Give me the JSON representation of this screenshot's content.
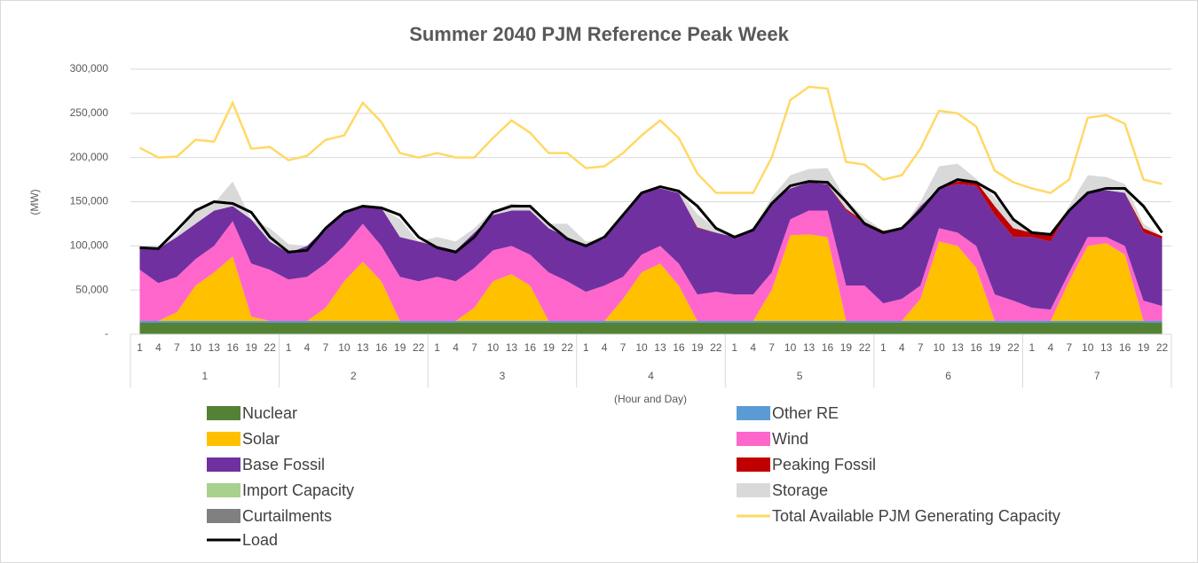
{
  "chart_data": {
    "type": "stacked-area",
    "title": "Summer 2040 PJM Reference Peak Week",
    "y_label": "(MW)",
    "x_label": "(Hour and Day)",
    "legend": "bottom",
    "grid": true,
    "categories": [
      "1",
      "4",
      "7",
      "10",
      "13",
      "16",
      "19",
      "22",
      "1",
      "4",
      "7",
      "10",
      "13",
      "16",
      "19",
      "22",
      "1",
      "4",
      "7",
      "10",
      "13",
      "16",
      "19",
      "22",
      "1",
      "4",
      "7",
      "10",
      "13",
      "16",
      "19",
      "22",
      "1",
      "4",
      "7",
      "10",
      "13",
      "16",
      "19",
      "22",
      "1",
      "4",
      "7",
      "10",
      "13",
      "16",
      "19",
      "22",
      "1",
      "4",
      "7",
      "10",
      "13",
      "16",
      "19",
      "22"
    ],
    "groups": [
      "1",
      "2",
      "3",
      "4",
      "5",
      "6",
      "7"
    ],
    "ylim": [
      0,
      300000
    ],
    "yticks": [
      {
        "value": 0,
        "label": "-"
      },
      {
        "value": 50000,
        "label": "50,000"
      },
      {
        "value": 100000,
        "label": "100,000"
      },
      {
        "value": 150000,
        "label": "150,000"
      },
      {
        "value": 200000,
        "label": "200,000"
      },
      {
        "value": 250000,
        "label": "250,000"
      },
      {
        "value": 300000,
        "label": "300,000"
      }
    ],
    "series": [
      {
        "name": "Nuclear",
        "color": "#548235",
        "kind": "area",
        "values": [
          13000,
          13000,
          13000,
          13000,
          13000,
          13000,
          13000,
          13000,
          13000,
          13000,
          13000,
          13000,
          13000,
          13000,
          13000,
          13000,
          13000,
          13000,
          13000,
          13000,
          13000,
          13000,
          13000,
          13000,
          13000,
          13000,
          13000,
          13000,
          13000,
          13000,
          13000,
          13000,
          13000,
          13000,
          13000,
          13000,
          13000,
          13000,
          13000,
          13000,
          13000,
          13000,
          13000,
          13000,
          13000,
          13000,
          13000,
          13000,
          13000,
          13000,
          13000,
          13000,
          13000,
          13000,
          13000,
          13000
        ]
      },
      {
        "name": "Other RE",
        "color": "#5b9bd5",
        "kind": "area",
        "values": [
          2000,
          2000,
          2000,
          2000,
          2000,
          2000,
          2000,
          2000,
          2000,
          2000,
          2000,
          2000,
          2000,
          2000,
          2000,
          2000,
          2000,
          2000,
          2000,
          2000,
          2000,
          2000,
          2000,
          2000,
          2000,
          2000,
          2000,
          2000,
          2000,
          2000,
          2000,
          2000,
          2000,
          2000,
          2000,
          2000,
          2000,
          2000,
          2000,
          2000,
          2000,
          2000,
          2000,
          2000,
          2000,
          2000,
          2000,
          2000,
          2000,
          2000,
          2000,
          2000,
          2000,
          2000,
          2000,
          2000
        ]
      },
      {
        "name": "Solar",
        "color": "#ffc000",
        "kind": "area",
        "values": [
          0,
          0,
          10000,
          40000,
          55000,
          73000,
          5000,
          0,
          0,
          0,
          15000,
          45000,
          67000,
          45000,
          0,
          0,
          0,
          0,
          15000,
          45000,
          53000,
          40000,
          0,
          0,
          0,
          0,
          25000,
          55000,
          65000,
          40000,
          0,
          0,
          0,
          0,
          35000,
          97000,
          98000,
          95000,
          0,
          0,
          0,
          0,
          25000,
          90000,
          85000,
          60000,
          0,
          0,
          0,
          0,
          45000,
          85000,
          88000,
          75000,
          0,
          0
        ]
      },
      {
        "name": "Wind",
        "color": "#ff66cc",
        "kind": "area",
        "values": [
          58000,
          43000,
          40000,
          30000,
          30000,
          40000,
          60000,
          58000,
          47000,
          50000,
          50000,
          40000,
          43000,
          40000,
          50000,
          45000,
          50000,
          45000,
          45000,
          35000,
          32000,
          35000,
          55000,
          45000,
          33000,
          40000,
          25000,
          20000,
          20000,
          25000,
          30000,
          33000,
          30000,
          30000,
          20000,
          18000,
          27000,
          30000,
          40000,
          40000,
          20000,
          25000,
          15000,
          15000,
          15000,
          25000,
          30000,
          23000,
          15000,
          13000,
          10000,
          10000,
          7000,
          10000,
          23000,
          17000
        ]
      },
      {
        "name": "Base Fossil",
        "color": "#7030a0",
        "kind": "area",
        "values": [
          24000,
          39000,
          45000,
          40000,
          40000,
          17000,
          50000,
          32000,
          30000,
          35000,
          40000,
          38000,
          20000,
          43000,
          45000,
          45000,
          35000,
          35000,
          40000,
          40000,
          40000,
          50000,
          50000,
          50000,
          52000,
          53000,
          70000,
          70000,
          65000,
          80000,
          75000,
          67000,
          65000,
          75000,
          80000,
          35000,
          32000,
          30000,
          85000,
          70000,
          80000,
          80000,
          90000,
          45000,
          55000,
          68000,
          90000,
          72000,
          80000,
          77000,
          70000,
          50000,
          53000,
          60000,
          77000,
          76000
        ]
      },
      {
        "name": "Peaking Fossil",
        "color": "#c00000",
        "kind": "area",
        "values": [
          0,
          0,
          0,
          0,
          0,
          0,
          0,
          0,
          0,
          0,
          0,
          0,
          0,
          0,
          0,
          0,
          0,
          0,
          0,
          0,
          0,
          0,
          0,
          0,
          0,
          0,
          0,
          0,
          0,
          0,
          1000,
          0,
          0,
          0,
          0,
          0,
          0,
          0,
          2000,
          2000,
          2000,
          0,
          0,
          0,
          3000,
          5000,
          10000,
          10000,
          5000,
          8000,
          0,
          0,
          0,
          0,
          5000,
          3000
        ]
      },
      {
        "name": "Import Capacity",
        "color": "#a9d18e",
        "kind": "area",
        "values": [
          0,
          0,
          0,
          0,
          0,
          0,
          0,
          0,
          0,
          0,
          0,
          0,
          0,
          0,
          0,
          0,
          0,
          0,
          0,
          0,
          0,
          0,
          0,
          0,
          0,
          0,
          0,
          0,
          0,
          0,
          0,
          0,
          0,
          0,
          0,
          0,
          0,
          0,
          0,
          0,
          0,
          0,
          0,
          0,
          0,
          0,
          0,
          0,
          0,
          0,
          0,
          0,
          0,
          0,
          0,
          0
        ]
      },
      {
        "name": "Storage",
        "color": "#d9d9d9",
        "kind": "area",
        "values": [
          0,
          0,
          3000,
          15000,
          8000,
          28000,
          0,
          15000,
          10000,
          0,
          0,
          0,
          0,
          0,
          20000,
          0,
          10000,
          10000,
          5000,
          5000,
          8000,
          5000,
          5000,
          15000,
          5000,
          0,
          0,
          0,
          2000,
          3000,
          15000,
          5000,
          0,
          0,
          5000,
          15000,
          15000,
          18000,
          10000,
          5000,
          0,
          0,
          5000,
          25000,
          20000,
          3000,
          10000,
          10000,
          0,
          0,
          5000,
          20000,
          15000,
          10000,
          5000,
          0
        ]
      },
      {
        "name": "Curtailments",
        "color": "#808080",
        "kind": "area",
        "values": [
          0,
          0,
          0,
          0,
          0,
          0,
          0,
          0,
          0,
          0,
          0,
          0,
          0,
          0,
          0,
          0,
          0,
          0,
          0,
          0,
          0,
          0,
          0,
          0,
          0,
          0,
          0,
          0,
          0,
          0,
          0,
          0,
          0,
          0,
          0,
          0,
          0,
          0,
          0,
          0,
          0,
          0,
          0,
          0,
          0,
          0,
          0,
          0,
          0,
          0,
          0,
          0,
          0,
          0,
          0,
          0
        ]
      },
      {
        "name": "Total Available PJM Generating Capacity",
        "color": "#ffd966",
        "kind": "line",
        "values": [
          211000,
          200000,
          201000,
          220000,
          218000,
          262000,
          210000,
          212000,
          197000,
          202000,
          220000,
          225000,
          262000,
          240000,
          205000,
          200000,
          205000,
          200000,
          200000,
          222000,
          242000,
          228000,
          205000,
          205000,
          188000,
          190000,
          205000,
          225000,
          242000,
          222000,
          182000,
          160000,
          160000,
          160000,
          200000,
          265000,
          280000,
          278000,
          195000,
          192000,
          175000,
          180000,
          210000,
          253000,
          250000,
          235000,
          185000,
          172000,
          165000,
          160000,
          175000,
          245000,
          248000,
          238000,
          175000,
          170000
        ]
      },
      {
        "name": "Load",
        "color": "#000000",
        "kind": "line",
        "values": [
          98000,
          97000,
          118000,
          140000,
          150000,
          148000,
          138000,
          110000,
          93000,
          95000,
          120000,
          138000,
          145000,
          143000,
          135000,
          110000,
          98000,
          93000,
          110000,
          138000,
          145000,
          145000,
          125000,
          108000,
          100000,
          110000,
          135000,
          160000,
          167000,
          162000,
          145000,
          120000,
          110000,
          118000,
          148000,
          168000,
          173000,
          172000,
          150000,
          125000,
          115000,
          120000,
          140000,
          165000,
          175000,
          172000,
          160000,
          130000,
          115000,
          113000,
          140000,
          160000,
          165000,
          165000,
          145000,
          115000
        ]
      }
    ]
  }
}
